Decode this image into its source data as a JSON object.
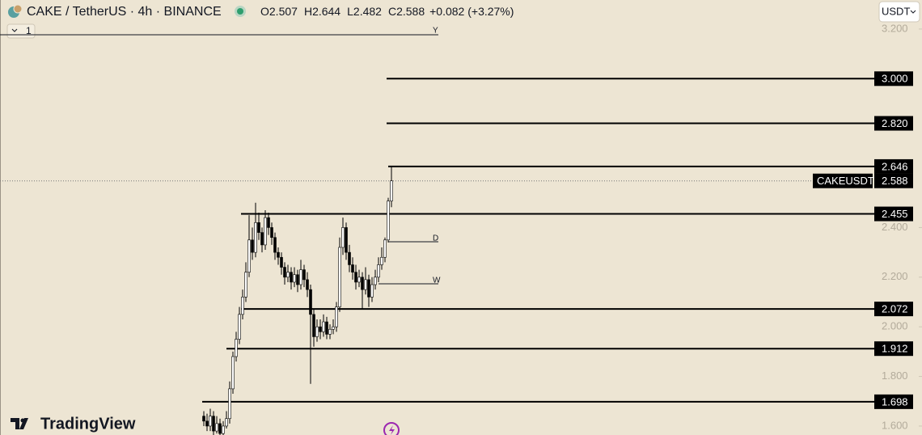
{
  "chart_data": {
    "type": "candlestick",
    "title": "CAKE / TetherUS · 4h · BINANCE",
    "ohlc": [
      {
        "label": "O",
        "value": 2.507
      },
      {
        "label": "H",
        "value": 2.644
      },
      {
        "label": "L",
        "value": 2.482
      },
      {
        "label": "C",
        "value": 2.588
      }
    ],
    "change": "+0.082 (+3.27%)",
    "currency": "USDT",
    "interval_button": "1",
    "markers": [
      "Y",
      "D",
      "W"
    ],
    "brand": "TradingView",
    "color": "#000000",
    "ylim": [
      1.564,
      3.317
    ],
    "yticks": [
      {
        "value": 3.2,
        "label": "3.200"
      },
      {
        "value": 2.4,
        "label": "2.400"
      },
      {
        "value": 2.2,
        "label": "2.200"
      },
      {
        "value": 2.0,
        "label": "2.000"
      },
      {
        "value": 1.8,
        "label": "1.800"
      },
      {
        "value": 1.6,
        "label": "1.600"
      }
    ],
    "levels": [
      {
        "value": 3.0,
        "label": "3.000"
      },
      {
        "value": 2.82,
        "label": "2.820"
      },
      {
        "value": 2.646,
        "label": "2.646"
      },
      {
        "value": 2.455,
        "label": "2.455"
      },
      {
        "value": 2.072,
        "label": "2.072"
      },
      {
        "value": 1.912,
        "label": "1.912"
      },
      {
        "value": 1.698,
        "label": "1.698"
      }
    ],
    "current": {
      "name": "CAKEUSDT",
      "value": 2.588,
      "label": "2.588"
    },
    "open": [
      1.64,
      1.62,
      1.6,
      1.64,
      1.58,
      1.61,
      1.57,
      1.6,
      1.63,
      1.75,
      1.88,
      1.95,
      2.05,
      2.12,
      2.22,
      2.35,
      2.3,
      2.42,
      2.38,
      2.33,
      2.44,
      2.4,
      2.36,
      2.3,
      2.28,
      2.24,
      2.2,
      2.22,
      2.18,
      2.21,
      2.17,
      2.23,
      2.19,
      2.15,
      2.05,
      1.96,
      2.0,
      1.98,
      2.02,
      1.97,
      1.99,
      2.0,
      2.08,
      2.32,
      2.4,
      2.3,
      2.25,
      2.22,
      2.18,
      2.2,
      2.15,
      2.19,
      2.12,
      2.17,
      2.2,
      2.25,
      2.28,
      2.35,
      2.507
    ],
    "high": [
      1.66,
      1.65,
      1.67,
      1.66,
      1.64,
      1.63,
      1.62,
      1.66,
      1.78,
      1.9,
      1.98,
      2.08,
      2.15,
      2.26,
      2.45,
      2.4,
      2.5,
      2.46,
      2.4,
      2.47,
      2.46,
      2.42,
      2.38,
      2.32,
      2.3,
      2.26,
      2.25,
      2.24,
      2.24,
      2.23,
      2.27,
      2.25,
      2.22,
      2.17,
      2.07,
      2.03,
      2.03,
      2.05,
      2.04,
      2.01,
      2.03,
      2.1,
      2.36,
      2.44,
      2.42,
      2.33,
      2.28,
      2.25,
      2.23,
      2.22,
      2.24,
      2.21,
      2.2,
      2.23,
      2.28,
      2.32,
      2.36,
      2.52,
      2.644
    ],
    "low": [
      1.6,
      1.58,
      1.58,
      1.56,
      1.57,
      1.56,
      1.56,
      1.59,
      1.61,
      1.73,
      1.86,
      1.93,
      2.03,
      2.1,
      2.2,
      2.27,
      2.28,
      2.35,
      2.3,
      2.31,
      2.37,
      2.33,
      2.27,
      2.25,
      2.21,
      2.17,
      2.18,
      2.15,
      2.16,
      2.14,
      2.15,
      2.16,
      2.12,
      1.77,
      1.92,
      1.94,
      1.95,
      1.96,
      1.95,
      1.95,
      1.97,
      1.98,
      2.06,
      2.29,
      2.27,
      2.22,
      2.19,
      2.15,
      2.16,
      2.07,
      2.13,
      2.08,
      2.1,
      2.15,
      2.18,
      2.23,
      2.26,
      2.34,
      2.482
    ],
    "close": [
      1.62,
      1.6,
      1.64,
      1.58,
      1.61,
      1.57,
      1.6,
      1.63,
      1.75,
      1.88,
      1.95,
      2.05,
      2.12,
      2.22,
      2.35,
      2.3,
      2.42,
      2.38,
      2.33,
      2.44,
      2.4,
      2.36,
      2.3,
      2.28,
      2.24,
      2.2,
      2.22,
      2.18,
      2.21,
      2.17,
      2.23,
      2.19,
      2.15,
      2.05,
      1.96,
      2.0,
      1.98,
      2.02,
      1.97,
      1.99,
      2.0,
      2.08,
      2.32,
      2.4,
      2.3,
      2.25,
      2.22,
      2.18,
      2.2,
      2.15,
      2.19,
      2.12,
      2.17,
      2.2,
      2.25,
      2.28,
      2.35,
      2.507,
      2.588
    ]
  }
}
